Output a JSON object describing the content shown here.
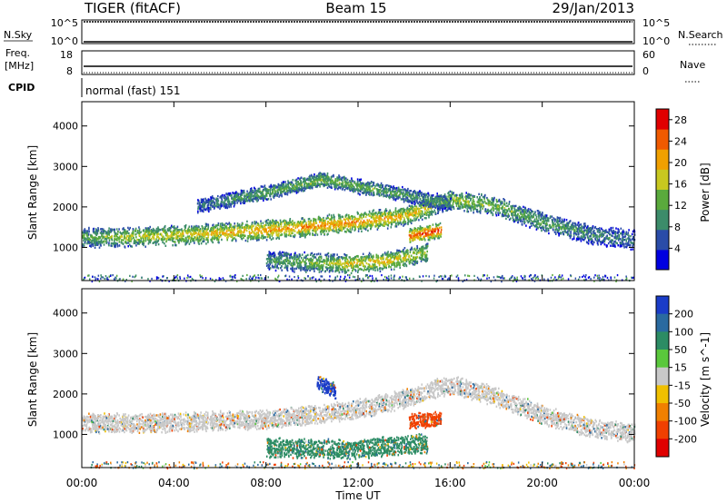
{
  "header": {
    "radar": "TIGER (fitACF)",
    "beam": "Beam 15",
    "date": "29/Jan/2013"
  },
  "panels": {
    "nsky": {
      "left_label": "N.Sky",
      "right_label": "N.Search",
      "left_ticks": [
        "10^5",
        "10^0"
      ],
      "right_ticks": [
        "10^5",
        "10^0"
      ]
    },
    "freq": {
      "left_label_1": "Freq.",
      "left_label_2": "[MHz]",
      "right_label": "Nave",
      "left_ticks": [
        "18",
        "8"
      ],
      "right_ticks": [
        "60",
        "0"
      ],
      "freq_value_mhz": 8.4,
      "nave_value": 4
    },
    "cpid": {
      "label": "CPID",
      "value": "normal (fast) 151"
    }
  },
  "chart_data": [
    {
      "type": "heatmap",
      "title": "",
      "xlabel": "",
      "ylabel": "Slant Range [km]",
      "x_tick_labels": [
        "00:00",
        "04:00",
        "08:00",
        "12:00",
        "16:00",
        "20:00",
        "00:00"
      ],
      "xlim_hours": [
        0,
        24
      ],
      "y_ticks": [
        1000,
        2000,
        3000,
        4000
      ],
      "ylim": [
        180,
        4600
      ],
      "colorbar": {
        "label": "Power [dB]",
        "ticks": [
          4,
          8,
          12,
          16,
          20,
          24,
          28
        ],
        "range": [
          0,
          30
        ],
        "colors": [
          "#0000e0",
          "#2a4ca8",
          "#3c8c6a",
          "#5aaa3c",
          "#c8c820",
          "#f0a000",
          "#f05a00",
          "#e00000"
        ]
      },
      "features_km": [
        {
          "name": "main band",
          "start_h": 0,
          "end_h": 24,
          "range_center": [
            1270,
            1280,
            1320,
            1380,
            1450,
            1550,
            1650,
            1800,
            2200,
            2050,
            1650,
            1350,
            1200
          ],
          "power_db": [
            12,
            16,
            18,
            20,
            22,
            23,
            22,
            20,
            16,
            14,
            12,
            10,
            8
          ]
        },
        {
          "name": "upper patch",
          "start_h": 5,
          "end_h": 16,
          "range_center": [
            2050,
            2350,
            2700,
            2400,
            2100
          ],
          "power_db": [
            8,
            12,
            14,
            12,
            10
          ]
        },
        {
          "name": "lower band",
          "start_h": 8,
          "end_h": 15,
          "range_center": [
            700,
            650,
            620,
            680,
            900
          ],
          "power_db": [
            10,
            14,
            18,
            20,
            16
          ]
        },
        {
          "name": "intense patch",
          "start_h": 14.2,
          "end_h": 15.6,
          "range_center": [
            1300,
            1450
          ],
          "power_db": [
            26,
            28
          ]
        }
      ]
    },
    {
      "type": "heatmap",
      "title": "",
      "xlabel": "Time UT",
      "ylabel": "Slant Range [km]",
      "x_tick_labels": [
        "00:00",
        "04:00",
        "08:00",
        "12:00",
        "16:00",
        "20:00",
        "00:00"
      ],
      "xlim_hours": [
        0,
        24
      ],
      "y_ticks": [
        1000,
        2000,
        3000,
        4000
      ],
      "ylim": [
        180,
        4600
      ],
      "colorbar": {
        "label": "Velocity [m s^-1]",
        "ticks": [
          200,
          100,
          50,
          15,
          -15,
          -50,
          -100,
          -200
        ],
        "colors": [
          "#1a3cc8",
          "#2a6aa0",
          "#2c8c64",
          "#5ac83c",
          "#c8c8c8",
          "#f0c000",
          "#f08000",
          "#f04000",
          "#e00000"
        ]
      },
      "features_km": [
        {
          "name": "ground scatter band",
          "start_h": 0,
          "end_h": 24,
          "range_center": [
            1300,
            1300,
            1320,
            1350,
            1400,
            1500,
            1650,
            1900,
            2250,
            1950,
            1500,
            1200,
            1050
          ],
          "velocity_ms": 0
        },
        {
          "name": "negative patch",
          "start_h": 14.2,
          "end_h": 15.6,
          "range_center": [
            1350,
            1400
          ],
          "velocity_ms": -150
        },
        {
          "name": "positive patch",
          "start_h": 10.2,
          "end_h": 11.0,
          "range_center": [
            2300,
            2100
          ],
          "velocity_ms": 200
        },
        {
          "name": "green low band",
          "start_h": 8,
          "end_h": 15,
          "range_center": [
            700,
            650,
            800
          ],
          "velocity_ms": 40
        }
      ]
    }
  ]
}
